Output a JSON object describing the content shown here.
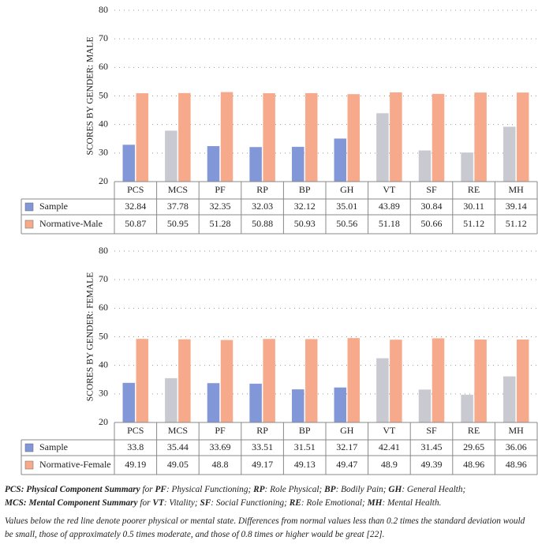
{
  "chart_data": [
    {
      "type": "bar",
      "ylabel": "SCORES BY GENDER: MALE",
      "categories": [
        "PCS",
        "MCS",
        "PF",
        "RP",
        "BP",
        "GH",
        "VT",
        "SF",
        "RE",
        "MH"
      ],
      "series": [
        {
          "name": "Sample",
          "color": "#8197d8",
          "colors": [
            "#8197d8",
            "#c9cad1",
            "#8197d8",
            "#8197d8",
            "#8197d8",
            "#8197d8",
            "#c9cad1",
            "#c9cad1",
            "#c9cad1",
            "#c9cad1"
          ],
          "values": [
            32.84,
            37.78,
            32.35,
            32.03,
            32.12,
            35.01,
            43.89,
            30.84,
            30.11,
            39.14
          ]
        },
        {
          "name": "Normative-Male",
          "color": "#f6aa8b",
          "values": [
            50.87,
            50.95,
            51.28,
            50.88,
            50.93,
            50.56,
            51.18,
            50.66,
            51.12,
            51.12
          ]
        }
      ],
      "ylim": [
        20,
        80
      ],
      "yticks": [
        20,
        30,
        40,
        50,
        60,
        70,
        80
      ],
      "grid": true
    },
    {
      "type": "bar",
      "ylabel": "SCORES BY GENDER: FEMALE",
      "categories": [
        "PCS",
        "MCS",
        "PF",
        "RP",
        "BP",
        "GH",
        "VT",
        "SF",
        "RE",
        "MH"
      ],
      "series": [
        {
          "name": "Sample",
          "color": "#8197d8",
          "colors": [
            "#8197d8",
            "#c9cad1",
            "#8197d8",
            "#8197d8",
            "#8197d8",
            "#8197d8",
            "#c9cad1",
            "#c9cad1",
            "#c9cad1",
            "#c9cad1"
          ],
          "values": [
            33.8,
            35.44,
            33.69,
            33.51,
            31.51,
            32.17,
            42.41,
            31.45,
            29.65,
            36.06
          ]
        },
        {
          "name": "Normative-Female",
          "color": "#f6aa8b",
          "values": [
            49.19,
            49.05,
            48.8,
            49.17,
            49.13,
            49.47,
            48.9,
            49.39,
            48.96,
            48.96
          ]
        }
      ],
      "ylim": [
        20,
        80
      ],
      "yticks": [
        20,
        30,
        40,
        50,
        60,
        70,
        80
      ],
      "grid": true
    }
  ],
  "notes": [
    [
      {
        "text": "PCS: Physical Component Summary",
        "bold": true
      },
      {
        "text": " for "
      },
      {
        "text": "PF",
        "bold": true
      },
      {
        "text": ": Physical Functioning; "
      },
      {
        "text": "RP",
        "bold": true
      },
      {
        "text": ": Role Physical; "
      },
      {
        "text": "BP",
        "bold": true
      },
      {
        "text": ": Bodily Pain; "
      },
      {
        "text": "GH",
        "bold": true
      },
      {
        "text": ": General Health;"
      }
    ],
    [
      {
        "text": "MCS: Mental Component Summary",
        "bold": true
      },
      {
        "text": " for "
      },
      {
        "text": "VT",
        "bold": true
      },
      {
        "text": ": Vitality; "
      },
      {
        "text": "SF",
        "bold": true
      },
      {
        "text": ": Social Functioning; "
      },
      {
        "text": "RE",
        "bold": true
      },
      {
        "text": ": Role Emotional; "
      },
      {
        "text": "MH",
        "bold": true
      },
      {
        "text": ": Mental Health."
      }
    ]
  ],
  "caption": "Values below the red line denote poorer physical or mental state. Differences from normal values less than 0.2 times the standard deviation would be small, those of approximately 0.5 times moderate, and those of 0.8 times or higher would be great [22]."
}
